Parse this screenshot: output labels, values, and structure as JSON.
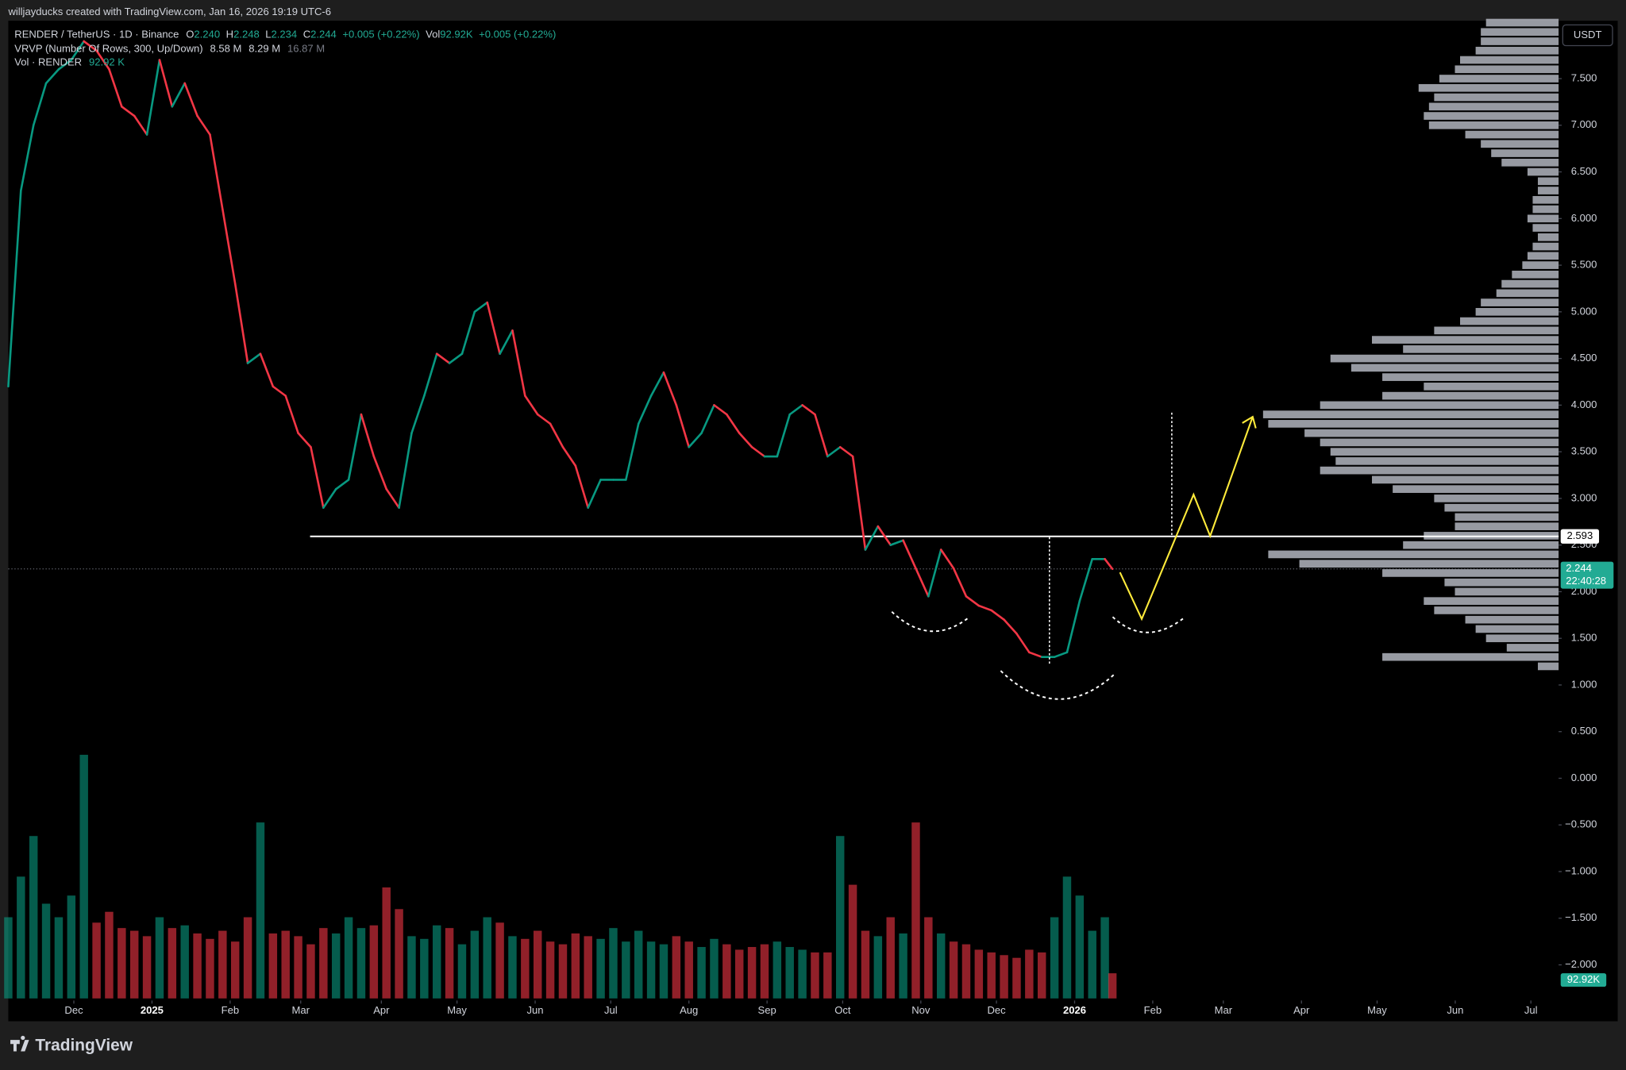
{
  "header": {
    "text": "willjayducks created with TradingView.com, Jan 16, 2026 19:19 UTC-6"
  },
  "chart_data": {
    "type": "line",
    "legend": {
      "symbol": "RENDER / TetherUS · 1D · Binance",
      "o_label": "O",
      "o": "2.240",
      "h_label": "H",
      "h": "2.248",
      "l_label": "L",
      "l": "2.234",
      "c_label": "C",
      "c": "2.244",
      "change": "+0.005 (+0.22%)",
      "vol_label": "Vol",
      "vol": "92.92K",
      "vol_change": "+0.005 (+0.22%)",
      "vrvp": "VRVP (Number Of Rows, 300, Up/Down)",
      "vrvp_up": "8.58 M",
      "vrvp_down": "8.29 M",
      "vrvp_total": "16.87 M",
      "vol_pane": "Vol · RENDER",
      "vol_pane_value": "92.92 K"
    },
    "x": [
      0,
      5,
      10,
      15,
      20,
      25,
      30,
      35,
      40,
      45,
      50,
      55,
      60,
      65,
      70,
      75,
      80,
      85,
      90,
      95,
      100,
      105,
      110,
      115,
      120,
      125,
      130,
      135,
      140,
      145,
      150,
      155,
      160,
      165,
      170,
      175,
      180,
      185,
      190,
      195,
      200,
      205,
      210,
      215,
      220,
      225,
      230,
      235,
      240,
      245,
      250,
      255,
      260,
      265,
      270,
      275,
      280,
      285,
      290,
      295,
      300,
      305,
      310,
      315,
      320,
      325,
      330,
      335,
      340,
      345,
      350,
      355,
      360,
      365,
      370,
      375,
      380,
      385,
      390,
      395,
      400,
      405,
      410,
      415,
      420,
      425,
      430,
      435,
      438
    ],
    "values": [
      4.2,
      6.3,
      7.0,
      7.45,
      7.6,
      7.7,
      7.9,
      7.8,
      7.6,
      7.2,
      7.1,
      6.9,
      7.7,
      7.2,
      7.45,
      7.1,
      6.9,
      6.1,
      5.3,
      4.45,
      4.55,
      4.2,
      4.1,
      3.7,
      3.55,
      2.9,
      3.1,
      3.2,
      3.9,
      3.45,
      3.1,
      2.9,
      3.7,
      4.1,
      4.55,
      4.45,
      4.55,
      5.0,
      5.1,
      4.55,
      4.8,
      4.1,
      3.9,
      3.8,
      3.55,
      3.35,
      2.9,
      3.2,
      3.2,
      3.2,
      3.8,
      4.1,
      4.35,
      4.0,
      3.55,
      3.7,
      4.0,
      3.9,
      3.7,
      3.55,
      3.45,
      3.45,
      3.9,
      4.0,
      3.9,
      3.45,
      3.55,
      3.45,
      2.45,
      2.7,
      2.5,
      2.55,
      2.25,
      1.95,
      2.45,
      2.25,
      1.95,
      1.85,
      1.8,
      1.7,
      1.55,
      1.35,
      1.3,
      1.3,
      1.35,
      1.9,
      2.35,
      2.35,
      2.244
    ],
    "up_color": "#089981",
    "down_color": "#f23645",
    "volume": {
      "values": [
        300,
        450,
        600,
        350,
        300,
        380,
        900,
        280,
        320,
        260,
        250,
        230,
        300,
        260,
        270,
        240,
        220,
        250,
        210,
        300,
        650,
        240,
        250,
        230,
        200,
        260,
        240,
        300,
        260,
        270,
        410,
        330,
        230,
        220,
        270,
        260,
        200,
        250,
        300,
        280,
        230,
        220,
        250,
        210,
        200,
        240,
        230,
        220,
        260,
        210,
        250,
        210,
        200,
        230,
        210,
        190,
        220,
        200,
        180,
        190,
        200,
        210,
        190,
        180,
        170,
        170,
        600,
        420,
        250,
        230,
        300,
        240,
        650,
        300,
        240,
        210,
        200,
        180,
        170,
        160,
        150,
        180,
        170,
        300,
        450,
        380,
        250,
        300,
        92.92
      ],
      "last_label": "92.92K"
    },
    "xlim": [
      0,
      615
    ],
    "xticks": [
      {
        "value": 26,
        "label": "Dec"
      },
      {
        "value": 57,
        "label": "2025"
      },
      {
        "value": 88,
        "label": "Feb"
      },
      {
        "value": 116,
        "label": "Mar"
      },
      {
        "value": 148,
        "label": "Apr"
      },
      {
        "value": 178,
        "label": "May"
      },
      {
        "value": 209,
        "label": "Jun"
      },
      {
        "value": 239,
        "label": "Jul"
      },
      {
        "value": 270,
        "label": "Aug"
      },
      {
        "value": 301,
        "label": "Sep"
      },
      {
        "value": 331,
        "label": "Oct"
      },
      {
        "value": 362,
        "label": "Nov"
      },
      {
        "value": 392,
        "label": "Dec"
      },
      {
        "value": 423,
        "label": "2026"
      },
      {
        "value": 454,
        "label": "Feb"
      },
      {
        "value": 482,
        "label": "Mar"
      },
      {
        "value": 513,
        "label": "Apr"
      },
      {
        "value": 543,
        "label": "May"
      },
      {
        "value": 574,
        "label": "Jun"
      },
      {
        "value": 604,
        "label": "Jul"
      }
    ],
    "ylim": [
      -2.36,
      8.12
    ],
    "yticks": [
      {
        "value": 7.5,
        "label": "7.500"
      },
      {
        "value": 7.0,
        "label": "7.000"
      },
      {
        "value": 6.5,
        "label": "6.500"
      },
      {
        "value": 6.0,
        "label": "6.000"
      },
      {
        "value": 5.5,
        "label": "5.500"
      },
      {
        "value": 5.0,
        "label": "5.000"
      },
      {
        "value": 4.5,
        "label": "4.500"
      },
      {
        "value": 4.0,
        "label": "4.000"
      },
      {
        "value": 3.5,
        "label": "3.500"
      },
      {
        "value": 3.0,
        "label": "3.000"
      },
      {
        "value": 2.5,
        "label": "2.500"
      },
      {
        "value": 2.0,
        "label": "2.000"
      },
      {
        "value": 1.5,
        "label": "1.500"
      },
      {
        "value": 1.0,
        "label": "1.000"
      },
      {
        "value": 0.5,
        "label": "0.500"
      },
      {
        "value": 0,
        "label": "0.000"
      },
      {
        "value": -0.5,
        "label": "−0.500"
      },
      {
        "value": -1.0,
        "label": "−1.000"
      },
      {
        "value": -1.5,
        "label": "−1.500"
      },
      {
        "value": -2.0,
        "label": "−2.000"
      }
    ],
    "y_unit": "USDT",
    "level": 2.593,
    "last": 2.244,
    "countdown": "22:40:28",
    "volume_profile": {
      "color": "#b2b5be",
      "prices": [
        8.1,
        8.0,
        7.9,
        7.8,
        7.7,
        7.6,
        7.5,
        7.4,
        7.3,
        7.2,
        7.1,
        7.0,
        6.9,
        6.8,
        6.7,
        6.6,
        6.5,
        6.4,
        6.3,
        6.2,
        6.1,
        6.0,
        5.9,
        5.8,
        5.7,
        5.6,
        5.5,
        5.4,
        5.3,
        5.2,
        5.1,
        5.0,
        4.9,
        4.8,
        4.7,
        4.6,
        4.5,
        4.4,
        4.3,
        4.2,
        4.1,
        4.0,
        3.9,
        3.8,
        3.7,
        3.6,
        3.5,
        3.4,
        3.3,
        3.2,
        3.1,
        3.0,
        2.9,
        2.8,
        2.7,
        2.6,
        2.5,
        2.4,
        2.3,
        2.2,
        2.1,
        2.0,
        1.9,
        1.8,
        1.7,
        1.6,
        1.5,
        1.4,
        1.3,
        1.2
      ],
      "volumes": [
        70,
        75,
        75,
        80,
        95,
        100,
        115,
        135,
        120,
        125,
        130,
        125,
        90,
        75,
        65,
        55,
        30,
        20,
        20,
        25,
        25,
        30,
        25,
        20,
        25,
        30,
        35,
        45,
        55,
        60,
        75,
        80,
        95,
        120,
        180,
        150,
        220,
        200,
        170,
        130,
        170,
        230,
        285,
        280,
        245,
        230,
        220,
        215,
        230,
        180,
        160,
        120,
        110,
        100,
        100,
        130,
        150,
        280,
        250,
        170,
        110,
        100,
        130,
        120,
        90,
        80,
        70,
        50,
        170,
        20
      ]
    }
  },
  "footer": {
    "brand": "TradingView"
  }
}
